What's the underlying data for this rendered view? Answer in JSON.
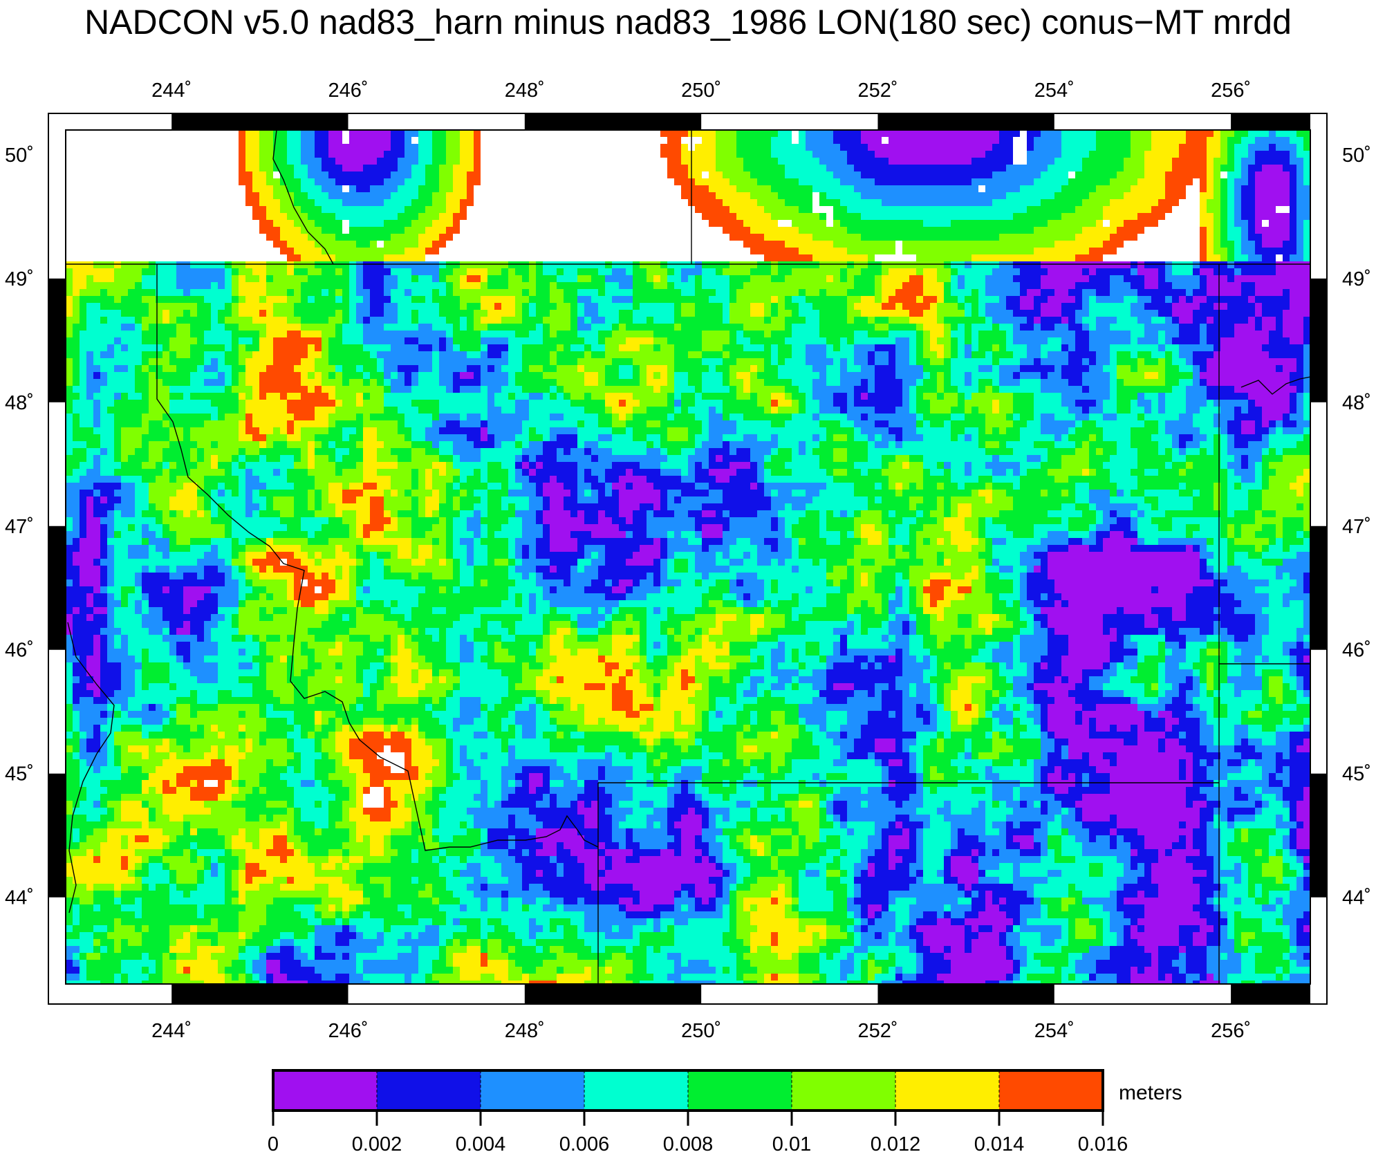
{
  "title": "NADCON v5.0 nad83_harn minus nad83_1986 LON(180 sec) conus−MT mrdd",
  "map": {
    "lon_range": [
      242.8,
      256.9
    ],
    "lat_range": [
      43.3,
      50.2
    ],
    "lon_ticks": [
      "244˚",
      "246˚",
      "248˚",
      "250˚",
      "252˚",
      "254˚",
      "256˚"
    ],
    "lat_ticks": [
      "50˚",
      "49˚",
      "48˚",
      "47˚",
      "46˚",
      "45˚",
      "44˚"
    ],
    "lon_tick_values": [
      244,
      246,
      248,
      250,
      252,
      254,
      256
    ],
    "lat_tick_values": [
      50,
      49,
      48,
      47,
      46,
      45,
      44
    ]
  },
  "colorbar": {
    "unit_label": "meters",
    "tick_labels": [
      "0",
      "0.002",
      "0.004",
      "0.006",
      "0.008",
      "0.01",
      "0.012",
      "0.014",
      "0.016"
    ],
    "colors": [
      "#a010f0",
      "#1010e8",
      "#1e90ff",
      "#00ffd0",
      "#00ee30",
      "#80ff00",
      "#ffee00",
      "#ff4a00"
    ]
  },
  "colors": {
    "no_data": "#ffffff",
    "frame": "#000000"
  }
}
